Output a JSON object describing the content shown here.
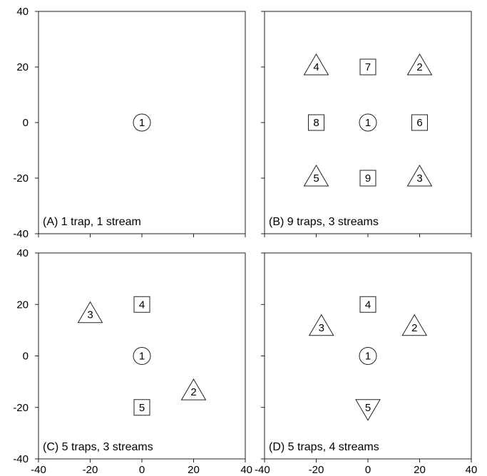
{
  "chart_data": [
    {
      "type": "scatter",
      "panel_label": "(A) 1 trap, 1 stream",
      "xlim": [
        -40,
        40
      ],
      "ylim": [
        -40,
        40
      ],
      "points": [
        {
          "x": 0,
          "y": 0,
          "label": "1",
          "shape": "circle"
        }
      ]
    },
    {
      "type": "scatter",
      "panel_label": "(B) 9 traps, 3 streams",
      "xlim": [
        -40,
        40
      ],
      "ylim": [
        -40,
        40
      ],
      "points": [
        {
          "x": 0,
          "y": 0,
          "label": "1",
          "shape": "circle"
        },
        {
          "x": 20,
          "y": 20,
          "label": "2",
          "shape": "triangle-up"
        },
        {
          "x": 20,
          "y": -20,
          "label": "3",
          "shape": "triangle-up"
        },
        {
          "x": -20,
          "y": 20,
          "label": "4",
          "shape": "triangle-up"
        },
        {
          "x": -20,
          "y": -20,
          "label": "5",
          "shape": "triangle-up"
        },
        {
          "x": 20,
          "y": 0,
          "label": "6",
          "shape": "square"
        },
        {
          "x": 0,
          "y": 20,
          "label": "7",
          "shape": "square"
        },
        {
          "x": -20,
          "y": 0,
          "label": "8",
          "shape": "square"
        },
        {
          "x": 0,
          "y": -20,
          "label": "9",
          "shape": "square"
        }
      ]
    },
    {
      "type": "scatter",
      "panel_label": "(C) 5 traps, 3 streams",
      "xlim": [
        -40,
        40
      ],
      "ylim": [
        -40,
        40
      ],
      "points": [
        {
          "x": 0,
          "y": 0,
          "label": "1",
          "shape": "circle"
        },
        {
          "x": 20,
          "y": -14,
          "label": "2",
          "shape": "triangle-up"
        },
        {
          "x": -20,
          "y": 16,
          "label": "3",
          "shape": "triangle-up"
        },
        {
          "x": 0,
          "y": 20,
          "label": "4",
          "shape": "square"
        },
        {
          "x": 0,
          "y": -20,
          "label": "5",
          "shape": "square"
        }
      ]
    },
    {
      "type": "scatter",
      "panel_label": "(D) 5 traps, 4 streams",
      "xlim": [
        -40,
        40
      ],
      "ylim": [
        -40,
        40
      ],
      "points": [
        {
          "x": 0,
          "y": 0,
          "label": "1",
          "shape": "circle"
        },
        {
          "x": 18,
          "y": 11,
          "label": "2",
          "shape": "triangle-up"
        },
        {
          "x": -18,
          "y": 11,
          "label": "3",
          "shape": "triangle-up"
        },
        {
          "x": 0,
          "y": 20,
          "label": "4",
          "shape": "square"
        },
        {
          "x": 0,
          "y": -20,
          "label": "5",
          "shape": "triangle-down"
        }
      ]
    }
  ],
  "axes": {
    "y_ticks": [
      40,
      20,
      0,
      -20,
      -40
    ],
    "x_ticks": [
      -40,
      -20,
      0,
      20,
      40
    ],
    "y_tick_labels": [
      "40",
      "20",
      "0",
      "-20",
      "-40"
    ],
    "x_tick_labels": [
      "-40",
      "-20",
      "0",
      "20",
      "40"
    ],
    "bottom_left_label": "40",
    "bottom_right_label": "-40"
  },
  "colors": {
    "frame": "#222222",
    "marker_fill": "#ffffff",
    "text": "#000000"
  }
}
